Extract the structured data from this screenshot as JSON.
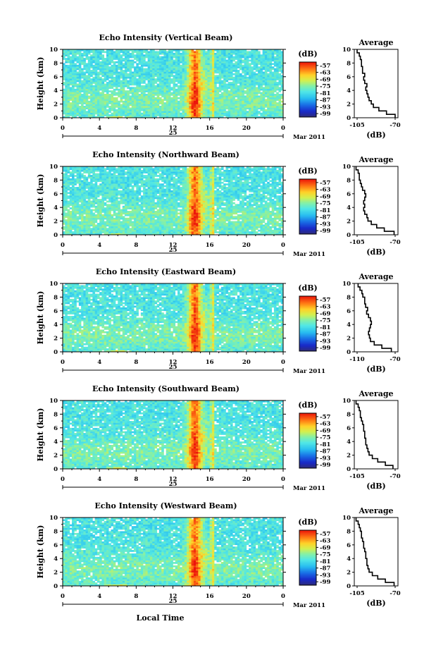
{
  "footer": {
    "xlabel": "Local Time"
  },
  "common": {
    "ylabel": "Height (km)",
    "unit_label": "(dB)",
    "avg_title": "Average",
    "avg_xlabel": "(dB)",
    "date_label": "Mar 2011",
    "day_label": "25",
    "height_ticks": [
      "0",
      "2",
      "4",
      "6",
      "8",
      "10"
    ],
    "time_ticks": [
      "0",
      "4",
      "8",
      "12",
      "16",
      "20",
      "0"
    ],
    "colorbar_ticks": [
      "-57",
      "-63",
      "-69",
      "-75",
      "-81",
      "-87",
      "-93",
      "-99"
    ]
  },
  "chart_data": [
    {
      "type": "heatmap",
      "title": "Echo Intensity (Vertical Beam)",
      "xlabel": "Local Time",
      "ylabel": "Height (km)",
      "xlim": [
        0,
        24
      ],
      "ylim": [
        0,
        10
      ],
      "zlim": [
        -99,
        -57
      ],
      "colorbar_label": "(dB)",
      "time_ticks": [
        "0",
        "4",
        "8",
        "12",
        "16",
        "20",
        "0"
      ],
      "date": "25 Mar 2011",
      "average": {
        "xlabel": "(dB)",
        "xticks": [
          "-105",
          "-70"
        ],
        "xlim": [
          -105,
          -70
        ],
        "height": [
          0,
          0.5,
          1,
          1.5,
          2,
          2.5,
          3,
          3.5,
          4,
          4.5,
          5,
          5.5,
          6,
          6.5,
          7,
          7.5,
          8,
          8.5,
          9,
          9.5
        ],
        "value": [
          -70,
          -78,
          -85,
          -90,
          -92,
          -94,
          -95,
          -96,
          -97,
          -96,
          -98,
          -99,
          -98,
          -100,
          -100,
          -101,
          -101,
          -102,
          -103,
          -105
        ]
      }
    },
    {
      "type": "heatmap",
      "title": "Echo Intensity (Northward Beam)",
      "xlabel": "Local Time",
      "ylabel": "Height (km)",
      "xlim": [
        0,
        24
      ],
      "ylim": [
        0,
        10
      ],
      "zlim": [
        -99,
        -57
      ],
      "colorbar_label": "(dB)",
      "time_ticks": [
        "0",
        "4",
        "8",
        "12",
        "16",
        "20",
        "0"
      ],
      "date": "25 Mar 2011",
      "average": {
        "xlabel": "(dB)",
        "xticks": [
          "-105",
          "-70"
        ],
        "xlim": [
          -105,
          -70
        ],
        "height": [
          0,
          0.5,
          1,
          1.5,
          2,
          2.5,
          3,
          3.5,
          4,
          4.5,
          5,
          5.5,
          6,
          6.5,
          7,
          7.5,
          8,
          8.5,
          9,
          9.5
        ],
        "value": [
          -71,
          -80,
          -87,
          -92,
          -95,
          -96,
          -98,
          -99,
          -98,
          -99,
          -98,
          -97,
          -98,
          -100,
          -101,
          -102,
          -103,
          -103,
          -104,
          -106
        ]
      }
    },
    {
      "type": "heatmap",
      "title": "Echo Intensity (Eastward Beam)",
      "xlabel": "Local Time",
      "ylabel": "Height (km)",
      "xlim": [
        0,
        24
      ],
      "ylim": [
        0,
        10
      ],
      "zlim": [
        -99,
        -57
      ],
      "colorbar_label": "(dB)",
      "time_ticks": [
        "0",
        "4",
        "8",
        "12",
        "16",
        "20",
        "0"
      ],
      "date": "25 Mar 2011",
      "average": {
        "xlabel": "(dB)",
        "xticks": [
          "-110",
          "-70"
        ],
        "xlim": [
          -110,
          -70
        ],
        "height": [
          0,
          0.5,
          1,
          1.5,
          2,
          2.5,
          3,
          3.5,
          4,
          4.5,
          5,
          5.5,
          6,
          6.5,
          7,
          7.5,
          8,
          8.5,
          9,
          9.5
        ],
        "value": [
          -74,
          -84,
          -92,
          -96,
          -97,
          -98,
          -97,
          -96,
          -95,
          -96,
          -98,
          -100,
          -99,
          -101,
          -102,
          -102,
          -104,
          -105,
          -107,
          -109
        ]
      }
    },
    {
      "type": "heatmap",
      "title": "Echo Intensity (Southward Beam)",
      "xlabel": "Local Time",
      "ylabel": "Height (km)",
      "xlim": [
        0,
        24
      ],
      "ylim": [
        0,
        10
      ],
      "zlim": [
        -99,
        -57
      ],
      "colorbar_label": "(dB)",
      "time_ticks": [
        "0",
        "4",
        "8",
        "12",
        "16",
        "20",
        "0"
      ],
      "date": "25 Mar 2011",
      "average": {
        "xlabel": "(dB)",
        "xticks": [
          "-105",
          "-70"
        ],
        "xlim": [
          -105,
          -70
        ],
        "height": [
          0,
          0.5,
          1,
          1.5,
          2,
          2.5,
          3,
          3.5,
          4,
          4.5,
          5,
          5.5,
          6,
          6.5,
          7,
          7.5,
          8,
          8.5,
          9,
          9.5
        ],
        "value": [
          -72,
          -79,
          -86,
          -91,
          -94,
          -95,
          -96,
          -97,
          -97,
          -98,
          -98,
          -99,
          -99,
          -100,
          -101,
          -102,
          -102,
          -103,
          -104,
          -106
        ]
      }
    },
    {
      "type": "heatmap",
      "title": "Echo Intensity (Westward Beam)",
      "xlabel": "Local Time",
      "ylabel": "Height (km)",
      "xlim": [
        0,
        24
      ],
      "ylim": [
        0,
        10
      ],
      "zlim": [
        -99,
        -57
      ],
      "colorbar_label": "(dB)",
      "time_ticks": [
        "0",
        "4",
        "8",
        "12",
        "16",
        "20",
        "0"
      ],
      "date": "25 Mar 2011",
      "average": {
        "xlabel": "(dB)",
        "xticks": [
          "-105",
          "-70"
        ],
        "xlim": [
          -105,
          -70
        ],
        "height": [
          0,
          0.5,
          1,
          1.5,
          2,
          2.5,
          3,
          3.5,
          4,
          4.5,
          5,
          5.5,
          6,
          6.5,
          7,
          7.5,
          8,
          8.5,
          9,
          9.5
        ],
        "value": [
          -71,
          -79,
          -86,
          -91,
          -94,
          -95,
          -96,
          -96,
          -97,
          -97,
          -98,
          -99,
          -99,
          -100,
          -101,
          -101,
          -102,
          -103,
          -104,
          -106
        ]
      }
    }
  ]
}
